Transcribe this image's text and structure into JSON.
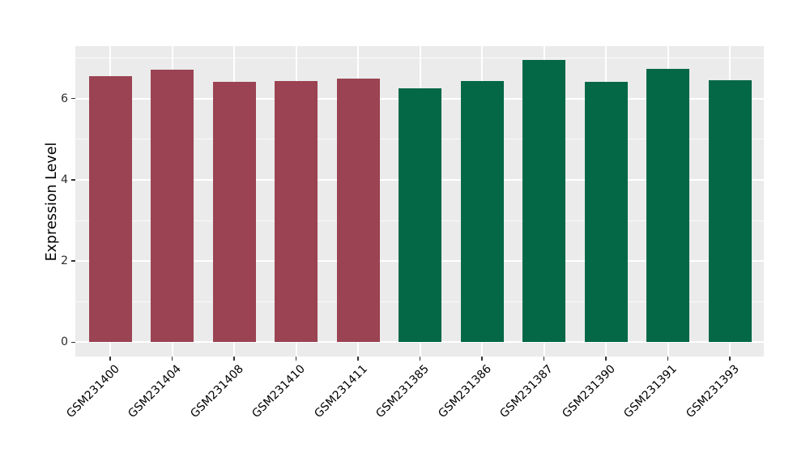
{
  "chart_data": {
    "type": "bar",
    "title": "",
    "xlabel": "",
    "ylabel": "Expression Level",
    "categories": [
      "GSM231400",
      "GSM231404",
      "GSM231408",
      "GSM231410",
      "GSM231411",
      "GSM231385",
      "GSM231386",
      "GSM231387",
      "GSM231390",
      "GSM231391",
      "GSM231393"
    ],
    "values": [
      6.55,
      6.71,
      6.41,
      6.44,
      6.5,
      6.25,
      6.43,
      6.96,
      6.41,
      6.73,
      6.45
    ],
    "bar_colors": [
      "#9B4352",
      "#9B4352",
      "#9B4352",
      "#9B4352",
      "#9B4352",
      "#046847",
      "#046847",
      "#046847",
      "#046847",
      "#046847",
      "#046847"
    ],
    "group_colors": {
      "left_group": "#9B4352",
      "right_group": "#046847"
    },
    "ylim": [
      -0.35,
      7.29
    ],
    "yticks": [
      0,
      2,
      4,
      6
    ],
    "yticks_minor": [
      1,
      3,
      5,
      7
    ],
    "x_tick_angle": 45,
    "grid": true,
    "legend": "none",
    "panel_background": "#EBEBEB",
    "grid_major_color": "#FFFFFF",
    "grid_minor_color": "#FFFFFF",
    "tick_mark_color": "#333333"
  }
}
